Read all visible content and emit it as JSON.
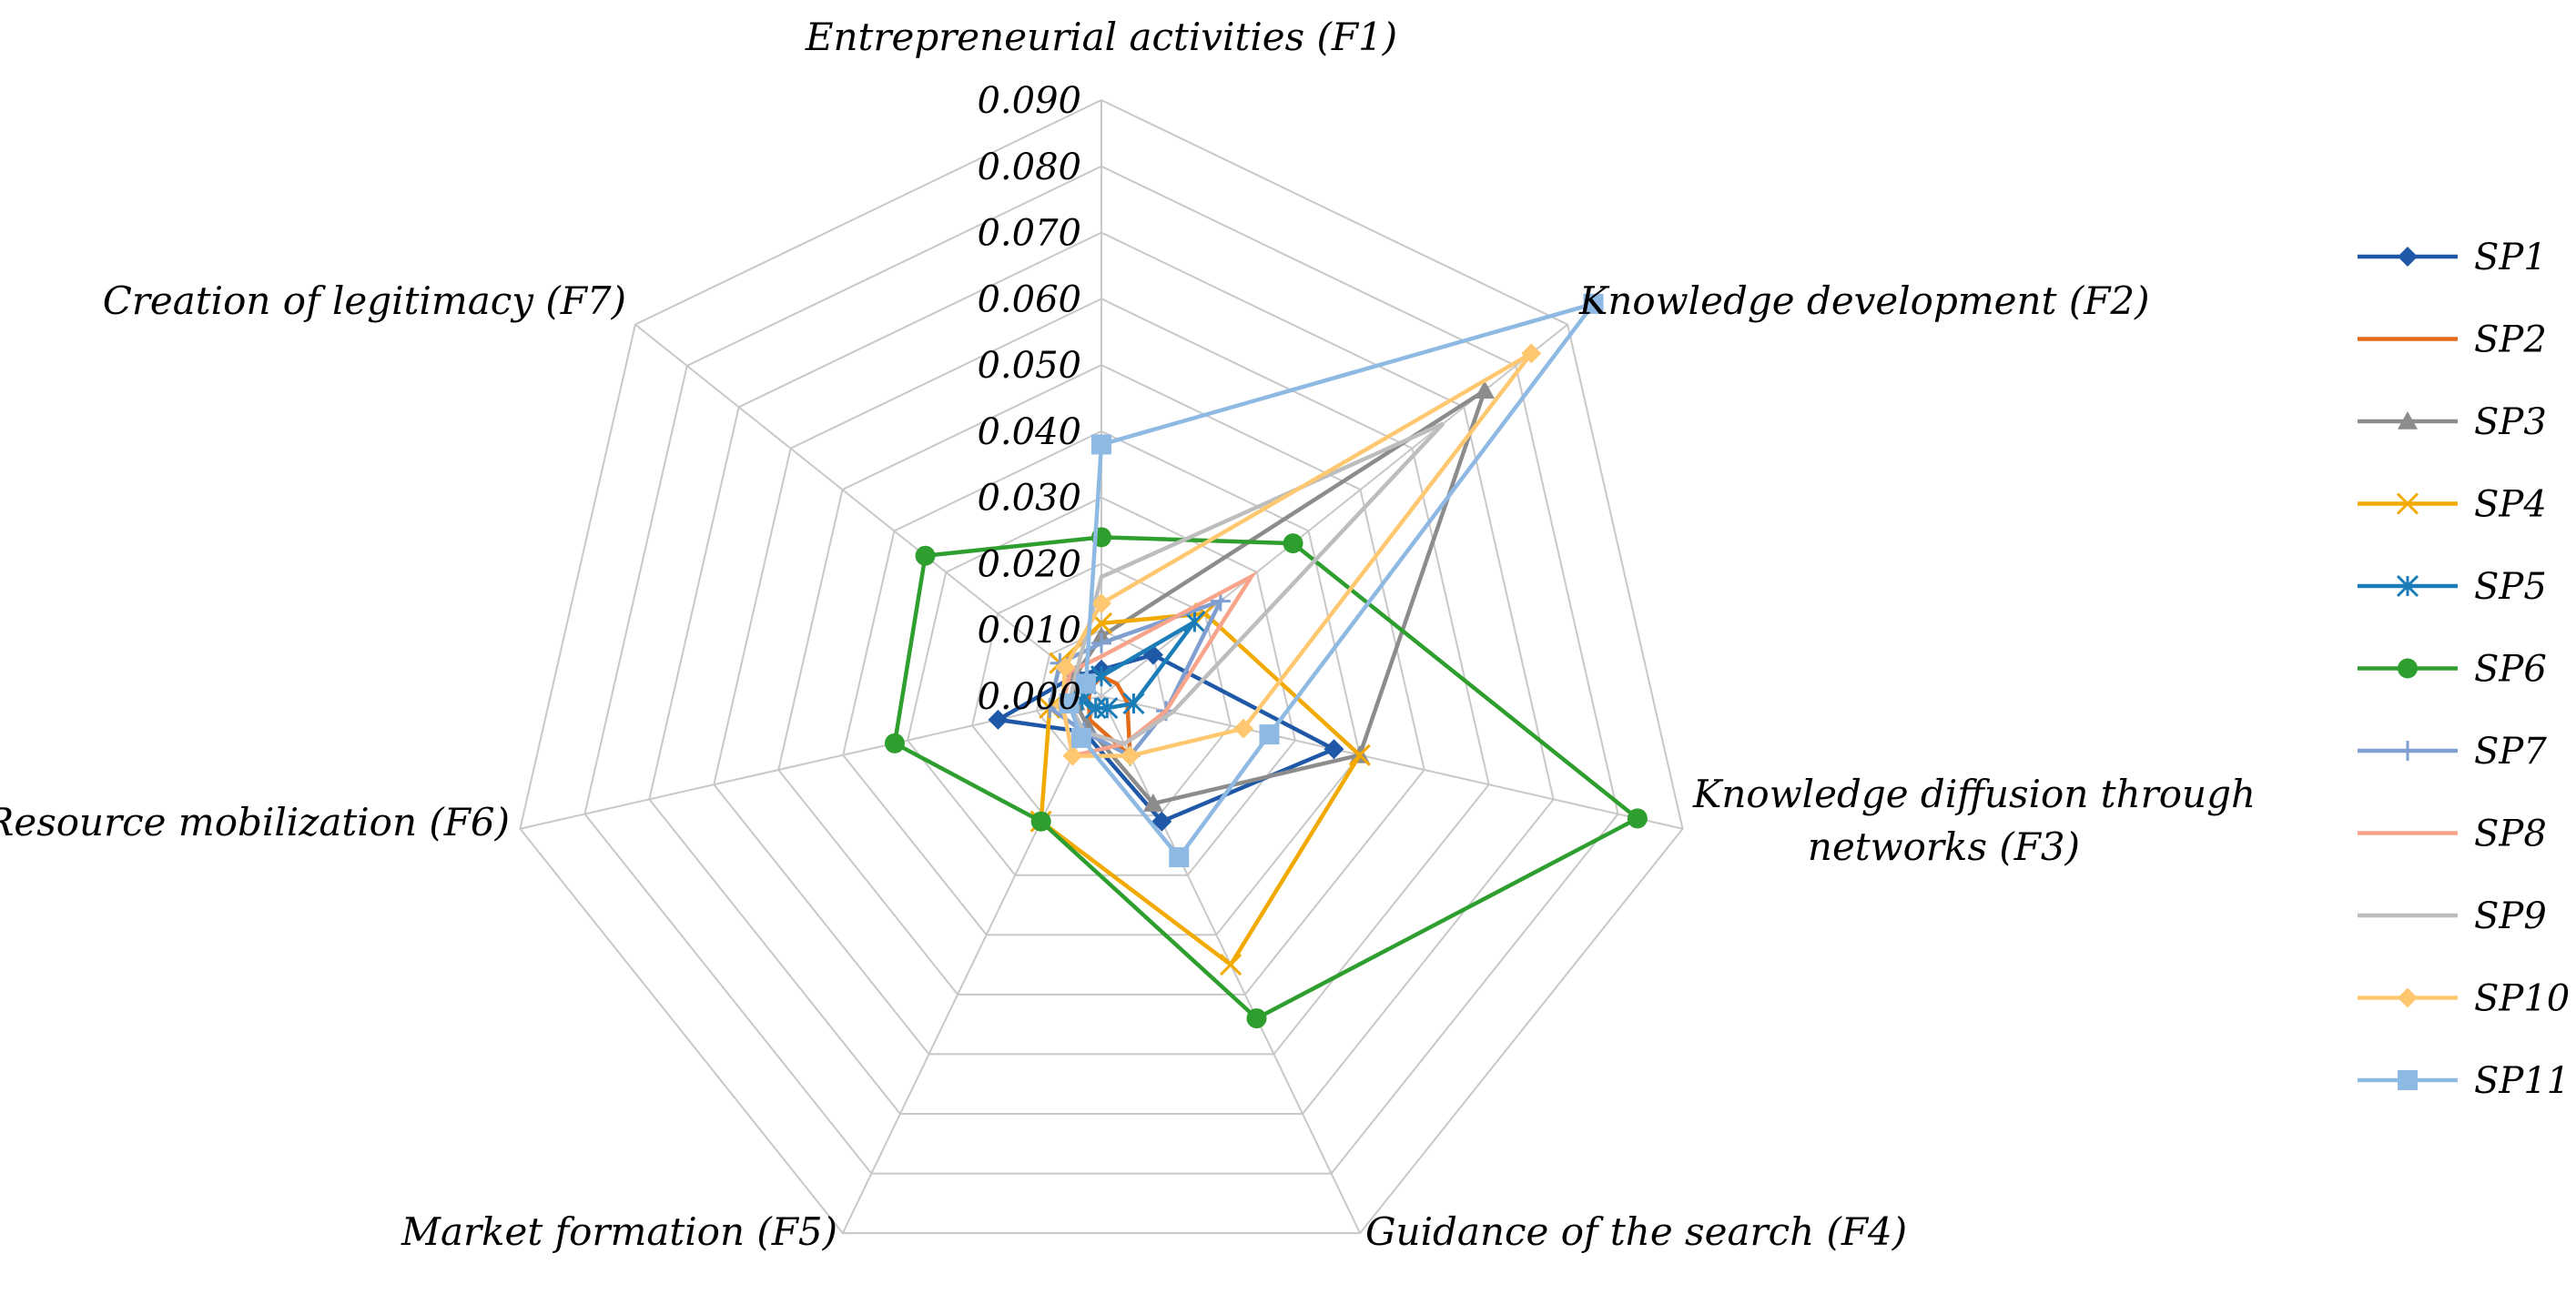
{
  "chart_data": {
    "type": "radar",
    "title": "",
    "axes": [
      "Entrepreneurial activities (F1)",
      "Knowledge development (F2)",
      [
        "Knowledge diffusion through",
        "networks (F3)"
      ],
      "Guidance of the search (F4)",
      "Market formation (F5)",
      "Resource mobilization (F6)",
      "Creation of legitimacy (F7)"
    ],
    "range": [
      0,
      0.09
    ],
    "ticks": [
      "0.000",
      "0.010",
      "0.020",
      "0.030",
      "0.040",
      "0.050",
      "0.060",
      "0.070",
      "0.080",
      "0.090"
    ],
    "series": [
      {
        "name": "SP1",
        "color": "#2058A8",
        "marker": "diamond",
        "values": [
          0.004,
          0.01,
          0.036,
          0.021,
          0.006,
          0.016,
          0.005
        ]
      },
      {
        "name": "SP2",
        "color": "#E36C1B",
        "marker": "none",
        "values": [
          0.003,
          0.003,
          0.004,
          0.01,
          0.004,
          0.002,
          0.002
        ]
      },
      {
        "name": "SP3",
        "color": "#8C8C8C",
        "marker": "triangle",
        "values": [
          0.009,
          0.074,
          0.04,
          0.018,
          0.005,
          0.004,
          0.005
        ]
      },
      {
        "name": "SP4",
        "color": "#F2A900",
        "marker": "x",
        "values": [
          0.011,
          0.02,
          0.04,
          0.045,
          0.021,
          0.008,
          0.008
        ]
      },
      {
        "name": "SP5",
        "color": "#1B7DB8",
        "marker": "asterisk",
        "values": [
          0.003,
          0.018,
          0.005,
          0.002,
          0.002,
          0.003,
          0.003
        ]
      },
      {
        "name": "SP6",
        "color": "#2E9E2E",
        "marker": "circle",
        "values": [
          0.024,
          0.037,
          0.083,
          0.054,
          0.021,
          0.032,
          0.034
        ]
      },
      {
        "name": "SP7",
        "color": "#7F9FD0",
        "marker": "plus",
        "values": [
          0.008,
          0.023,
          0.01,
          0.01,
          0.006,
          0.008,
          0.008
        ]
      },
      {
        "name": "SP8",
        "color": "#F7A48B",
        "marker": "none",
        "values": [
          0.006,
          0.029,
          0.01,
          0.008,
          0.01,
          0.006,
          0.006
        ]
      },
      {
        "name": "SP9",
        "color": "#BDBDBD",
        "marker": "none",
        "values": [
          0.018,
          0.066,
          0.011,
          0.008,
          0.006,
          0.005,
          0.005
        ]
      },
      {
        "name": "SP10",
        "color": "#FFC870",
        "marker": "diamond",
        "values": [
          0.014,
          0.083,
          0.022,
          0.01,
          0.01,
          0.006,
          0.007
        ]
      },
      {
        "name": "SP11",
        "color": "#8EB9E3",
        "marker": "square",
        "values": [
          0.038,
          0.095,
          0.026,
          0.027,
          0.007,
          0.005,
          0.003
        ]
      }
    ],
    "legend": "right"
  }
}
